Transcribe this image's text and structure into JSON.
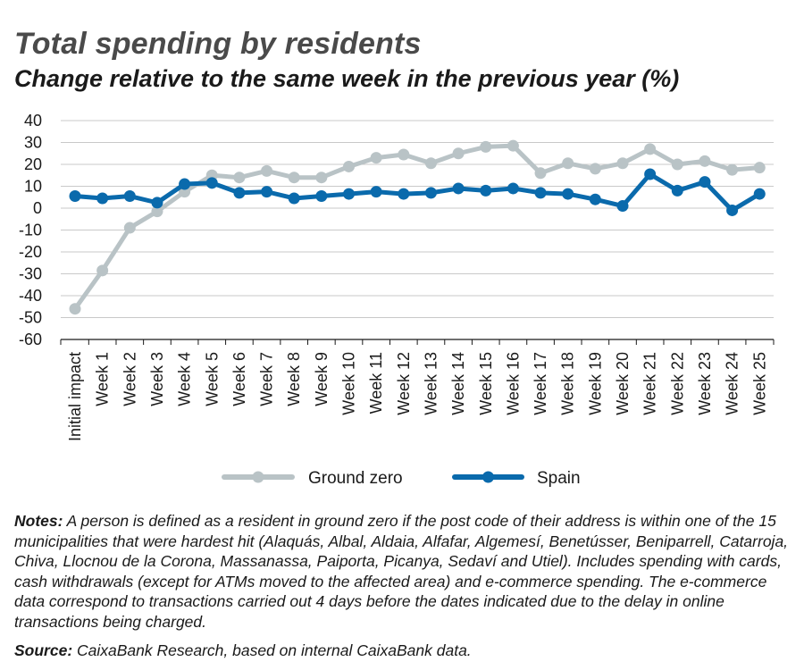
{
  "header": {
    "title": "Total spending by residents",
    "subtitle": "Change relative to the same week in the previous year (%)"
  },
  "chart_data": {
    "type": "line",
    "categories": [
      "Initial impact",
      "Week 1",
      "Week 2",
      "Week 3",
      "Week 4",
      "Week 5",
      "Week 6",
      "Week 7",
      "Week 8",
      "Week 9",
      "Week 10",
      "Week 11",
      "Week 12",
      "Week 13",
      "Week 14",
      "Week 15",
      "Week 16",
      "Week 17",
      "Week 18",
      "Week 19",
      "Week 20",
      "Week 21",
      "Week 22",
      "Week 23",
      "Week 24",
      "Week 25"
    ],
    "series": [
      {
        "name": "Ground zero",
        "color": "#b9c3c6",
        "values": [
          -46,
          -28.5,
          -9,
          -1.5,
          7.5,
          15,
          14,
          17,
          14,
          14,
          19,
          23,
          24.5,
          20.5,
          25,
          28,
          28.5,
          16,
          20.5,
          18,
          20.5,
          27,
          20,
          21.5,
          17.5,
          18.5
        ]
      },
      {
        "name": "Spain",
        "color": "#0a6aac",
        "values": [
          5.5,
          4.5,
          5.5,
          2.5,
          11,
          11.5,
          7,
          7.5,
          4.5,
          5.5,
          6.5,
          7.5,
          6.5,
          7,
          9,
          8,
          9,
          7,
          6.5,
          4,
          1,
          15.5,
          8,
          12,
          -1,
          6.5
        ]
      }
    ],
    "yticks": [
      "40",
      "30",
      "20",
      "10",
      "0",
      "-10",
      "-20",
      "-30",
      "-40",
      "-50",
      "-60"
    ],
    "ylim": [
      -60,
      40
    ],
    "grid": true,
    "legend": "bottom-center"
  },
  "footer": {
    "notes_label": "Notes:",
    "notes_text": " A person is defined as a resident in ground zero if the post code of their address is within one of the 15 municipalities that were hardest hit (Alaquás, Albal, Aldaia, Alfafar, Algemesí, Benetússer, Beniparrell, Catarroja, Chiva, Llocnou de la Corona, Massanassa, Paiporta, Picanya, Sedaví and Utiel). Includes spending with cards, cash withdrawals (except for ATMs moved to the affected area) and e-commerce spending. The e-commerce data correspond to transactions carried out 4 days before the dates indicated due to the delay in online transactions being charged.",
    "source_label": "Source:",
    "source_text": " CaixaBank Research, based on internal CaixaBank data."
  }
}
